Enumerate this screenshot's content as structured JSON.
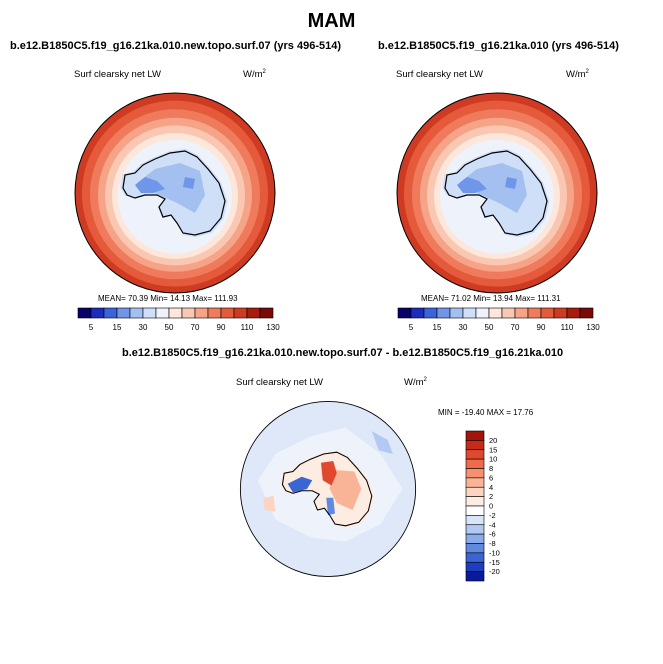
{
  "figure": {
    "title": "MAM",
    "variable": "Surf clearsky net LW",
    "units": "W/m",
    "units_exp": "2"
  },
  "chart_data": [
    {
      "type": "heatmap",
      "projection": "south-polar-stereographic",
      "title": "b.e12.B1850C5.f19_g16.21ka.010.new.topo.surf.07 (yrs 496-514)",
      "variable": "Surf clearsky net LW",
      "units": "W/m2",
      "stats": {
        "mean": "70.39",
        "min": "14.13",
        "max": "111.93"
      },
      "stats_text": "MEAN= 70.39  Min= 14.13  Max= 111.93",
      "colorbar": {
        "orientation": "horizontal",
        "levels": [
          5,
          15,
          30,
          50,
          70,
          90,
          110,
          130
        ],
        "level_labels": [
          "5",
          "15",
          "30",
          "50",
          "70",
          "90",
          "110",
          "130"
        ],
        "colors": [
          "#08006b",
          "#1a2dbf",
          "#3b63db",
          "#6f96e8",
          "#a3c0f0",
          "#cfdff7",
          "#eef3fb",
          "#fde6da",
          "#fac8b2",
          "#f5a487",
          "#ef7b5c",
          "#e45a3b",
          "#cf3b22",
          "#a61c0e",
          "#7a0906"
        ]
      }
    },
    {
      "type": "heatmap",
      "projection": "south-polar-stereographic",
      "title": "b.e12.B1850C5.f19_g16.21ka.010 (yrs 496-514)",
      "variable": "Surf clearsky net LW",
      "units": "W/m2",
      "stats": {
        "mean": "71.02",
        "min": "13.94",
        "max": "111.31"
      },
      "stats_text": "MEAN= 71.02  Min= 13.94  Max= 111.31",
      "colorbar": {
        "orientation": "horizontal",
        "levels": [
          5,
          15,
          30,
          50,
          70,
          90,
          110,
          130
        ],
        "level_labels": [
          "5",
          "15",
          "30",
          "50",
          "70",
          "90",
          "110",
          "130"
        ],
        "colors": [
          "#08006b",
          "#1a2dbf",
          "#3b63db",
          "#6f96e8",
          "#a3c0f0",
          "#cfdff7",
          "#eef3fb",
          "#fde6da",
          "#fac8b2",
          "#f5a487",
          "#ef7b5c",
          "#e45a3b",
          "#cf3b22",
          "#a61c0e",
          "#7a0906"
        ]
      }
    },
    {
      "type": "heatmap",
      "projection": "south-polar-stereographic",
      "title": "b.e12.B1850C5.f19_g16.21ka.010.new.topo.surf.07 - b.e12.B1850C5.f19_g16.21ka.010",
      "variable": "Surf clearsky net LW",
      "units": "W/m2",
      "stats": {
        "min": "-19.40",
        "max": "17.76"
      },
      "stats_text": "MIN = -19.40 MAX =  17.76",
      "colorbar": {
        "orientation": "vertical",
        "levels": [
          20,
          15,
          10,
          8,
          6,
          4,
          2,
          0,
          -2,
          -4,
          -6,
          -8,
          -10,
          -15,
          -20
        ],
        "level_labels": [
          "20",
          "15",
          "10",
          "8",
          "6",
          "4",
          "2",
          "0",
          "-2",
          "-4",
          "-6",
          "-8",
          "-10",
          "-15",
          "-20"
        ],
        "colors": [
          "#a3140a",
          "#c62a18",
          "#e0492e",
          "#ef6b4c",
          "#f6906f",
          "#f9b497",
          "#fcd4c1",
          "#fdece2",
          "#ffffff",
          "#d8e4f8",
          "#b2c9f2",
          "#8aaceb",
          "#5f8ae0",
          "#3a66d4",
          "#1c3fc0",
          "#0a1a9a"
        ]
      }
    }
  ]
}
